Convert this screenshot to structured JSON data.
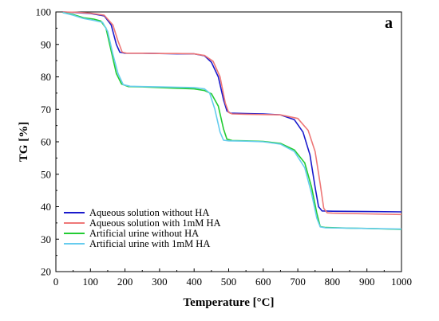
{
  "chart_data": {
    "type": "line",
    "panel_label": "a",
    "xlabel": "Temperature [°C]",
    "ylabel": "TG [%]",
    "xlim": [
      0,
      1000
    ],
    "ylim": [
      20,
      100
    ],
    "xticks": [
      0,
      100,
      200,
      300,
      400,
      500,
      600,
      700,
      800,
      900,
      1000
    ],
    "yticks": [
      20,
      30,
      40,
      50,
      60,
      70,
      80,
      90,
      100
    ],
    "grid": false,
    "legend_position": "bottom-left",
    "series": [
      {
        "name": "Aqueous solution without HA",
        "color": "#1a1acc",
        "points": [
          [
            20,
            100
          ],
          [
            60,
            99.8
          ],
          [
            100,
            99.5
          ],
          [
            140,
            98.8
          ],
          [
            160,
            96
          ],
          [
            175,
            90
          ],
          [
            185,
            87.6
          ],
          [
            200,
            87.3
          ],
          [
            250,
            87.3
          ],
          [
            300,
            87.2
          ],
          [
            350,
            87.1
          ],
          [
            400,
            87.1
          ],
          [
            430,
            86.5
          ],
          [
            450,
            84.5
          ],
          [
            470,
            80
          ],
          [
            485,
            73
          ],
          [
            495,
            69.5
          ],
          [
            505,
            68.8
          ],
          [
            550,
            68.7
          ],
          [
            600,
            68.6
          ],
          [
            650,
            68.3
          ],
          [
            690,
            66.8
          ],
          [
            715,
            63
          ],
          [
            735,
            56
          ],
          [
            750,
            46
          ],
          [
            760,
            40
          ],
          [
            770,
            38.7
          ],
          [
            800,
            38.6
          ],
          [
            900,
            38.5
          ],
          [
            1000,
            38.4
          ]
        ]
      },
      {
        "name": "Aqueous solution with 1mM HA",
        "color": "#ee7777",
        "points": [
          [
            20,
            100
          ],
          [
            60,
            99.9
          ],
          [
            100,
            99.6
          ],
          [
            140,
            99
          ],
          [
            165,
            96
          ],
          [
            180,
            91
          ],
          [
            192,
            87.6
          ],
          [
            205,
            87.3
          ],
          [
            250,
            87.3
          ],
          [
            300,
            87.2
          ],
          [
            350,
            87.2
          ],
          [
            400,
            87.1
          ],
          [
            430,
            86.6
          ],
          [
            455,
            84.8
          ],
          [
            475,
            80
          ],
          [
            490,
            72
          ],
          [
            500,
            69
          ],
          [
            510,
            68.6
          ],
          [
            550,
            68.5
          ],
          [
            600,
            68.4
          ],
          [
            650,
            68.3
          ],
          [
            700,
            67.2
          ],
          [
            730,
            63.5
          ],
          [
            750,
            57
          ],
          [
            765,
            47
          ],
          [
            775,
            39.5
          ],
          [
            785,
            38.1
          ],
          [
            800,
            38
          ],
          [
            900,
            37.8
          ],
          [
            1000,
            37.6
          ]
        ]
      },
      {
        "name": "Artificial urine without HA",
        "color": "#22cc33",
        "points": [
          [
            20,
            99.8
          ],
          [
            50,
            99.2
          ],
          [
            80,
            98.2
          ],
          [
            110,
            97.8
          ],
          [
            130,
            97.2
          ],
          [
            145,
            95
          ],
          [
            160,
            88
          ],
          [
            175,
            81
          ],
          [
            190,
            77.8
          ],
          [
            210,
            77
          ],
          [
            250,
            76.9
          ],
          [
            300,
            76.7
          ],
          [
            350,
            76.5
          ],
          [
            400,
            76.3
          ],
          [
            430,
            75.8
          ],
          [
            450,
            74.8
          ],
          [
            470,
            71
          ],
          [
            485,
            64
          ],
          [
            495,
            60.8
          ],
          [
            510,
            60.4
          ],
          [
            550,
            60.3
          ],
          [
            600,
            60.1
          ],
          [
            650,
            59.5
          ],
          [
            690,
            57.5
          ],
          [
            720,
            53.5
          ],
          [
            740,
            46
          ],
          [
            755,
            38
          ],
          [
            765,
            33.9
          ],
          [
            780,
            33.6
          ],
          [
            850,
            33.4
          ],
          [
            900,
            33.3
          ],
          [
            1000,
            33
          ]
        ]
      },
      {
        "name": "Artificial urine with 1mM HA",
        "color": "#66ccee",
        "points": [
          [
            20,
            99.8
          ],
          [
            50,
            99
          ],
          [
            80,
            98
          ],
          [
            110,
            97.4
          ],
          [
            135,
            96.8
          ],
          [
            150,
            94
          ],
          [
            165,
            87
          ],
          [
            180,
            81
          ],
          [
            195,
            77.6
          ],
          [
            215,
            77.1
          ],
          [
            250,
            77
          ],
          [
            300,
            76.9
          ],
          [
            350,
            76.8
          ],
          [
            400,
            76.7
          ],
          [
            430,
            76.3
          ],
          [
            445,
            75
          ],
          [
            460,
            70
          ],
          [
            475,
            63
          ],
          [
            485,
            60.5
          ],
          [
            500,
            60.3
          ],
          [
            550,
            60.2
          ],
          [
            600,
            60
          ],
          [
            650,
            59.3
          ],
          [
            690,
            57
          ],
          [
            720,
            52
          ],
          [
            740,
            44
          ],
          [
            755,
            36.5
          ],
          [
            765,
            33.8
          ],
          [
            780,
            33.5
          ],
          [
            850,
            33.4
          ],
          [
            900,
            33.3
          ],
          [
            1000,
            33.1
          ]
        ]
      }
    ]
  }
}
